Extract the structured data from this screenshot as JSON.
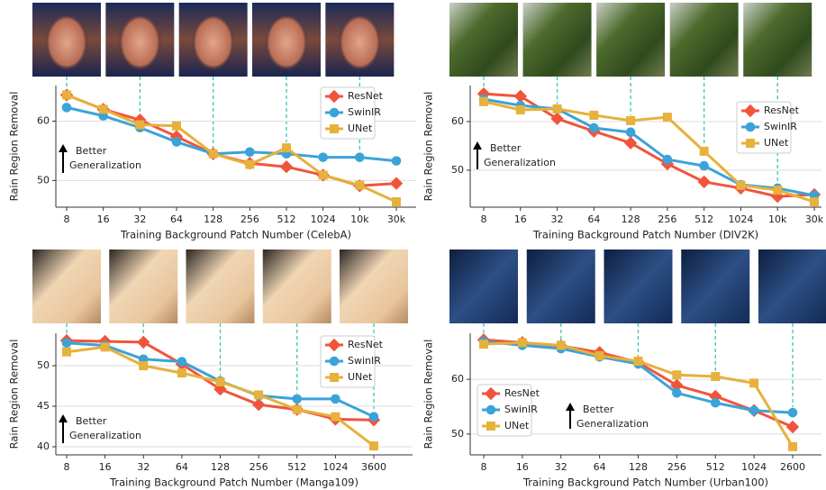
{
  "chart_data": [
    {
      "type": "line",
      "xlabel": "Training Background Patch Number (CelebA)",
      "ylabel": "Rain Region Removal",
      "categories": [
        "8",
        "16",
        "32",
        "64",
        "128",
        "256",
        "512",
        "1024",
        "10k",
        "30k"
      ],
      "ylim": [
        45.5,
        66
      ],
      "yticks": [
        50,
        60
      ],
      "grid": true,
      "legend": "upper right",
      "annotation": [
        "Better",
        "Generalization"
      ],
      "series": [
        {
          "name": "ResNet",
          "color": "#f0553c",
          "marker": "diamond",
          "values": [
            64.4,
            62.0,
            60.2,
            57.4,
            54.5,
            52.9,
            52.3,
            50.9,
            49.1,
            49.5
          ]
        },
        {
          "name": "SwinIR",
          "color": "#3ba3d8",
          "marker": "circle",
          "values": [
            62.3,
            60.9,
            58.9,
            56.5,
            54.5,
            54.8,
            54.5,
            53.9,
            53.9,
            53.3
          ]
        },
        {
          "name": "UNet",
          "color": "#e6b13c",
          "marker": "square",
          "values": [
            64.4,
            62.0,
            59.4,
            59.2,
            54.5,
            52.7,
            55.5,
            50.9,
            49.2,
            46.4
          ]
        }
      ]
    },
    {
      "type": "line",
      "xlabel": "Training Background Patch Number (DIV2K)",
      "ylabel": "Rain Region Removal",
      "categories": [
        "8",
        "16",
        "32",
        "64",
        "128",
        "256",
        "512",
        "1024",
        "10k",
        "30k"
      ],
      "ylim": [
        42.4,
        67.4
      ],
      "yticks": [
        50,
        60
      ],
      "grid": true,
      "legend": "upper right",
      "annotation": [
        "Better",
        "Generalization"
      ],
      "series": [
        {
          "name": "ResNet",
          "color": "#f0553c",
          "marker": "diamond",
          "values": [
            65.7,
            65.2,
            60.6,
            58.0,
            55.6,
            51.3,
            47.6,
            46.3,
            44.6,
            45.0
          ]
        },
        {
          "name": "SwinIR",
          "color": "#3ba3d8",
          "marker": "circle",
          "values": [
            64.6,
            63.3,
            62.6,
            58.7,
            57.8,
            52.2,
            50.9,
            47.0,
            46.3,
            44.8
          ]
        },
        {
          "name": "UNet",
          "color": "#e6b13c",
          "marker": "square",
          "values": [
            64.1,
            62.4,
            62.6,
            61.3,
            60.2,
            60.9,
            53.9,
            46.9,
            45.9,
            43.5
          ]
        }
      ]
    },
    {
      "type": "line",
      "xlabel": "Training Background Patch Number (Manga109)",
      "ylabel": "Rain Region Removal",
      "categories": [
        "8",
        "16",
        "32",
        "64",
        "128",
        "256",
        "512",
        "1024",
        "3600"
      ],
      "ylim": [
        39,
        54
      ],
      "yticks": [
        40,
        45,
        50
      ],
      "grid": true,
      "legend": "upper right",
      "annotation": [
        "Better",
        "Generalization"
      ],
      "series": [
        {
          "name": "ResNet",
          "color": "#f0553c",
          "marker": "diamond",
          "values": [
            53.1,
            53.0,
            52.9,
            50.2,
            47.1,
            45.2,
            44.6,
            43.4,
            43.3
          ]
        },
        {
          "name": "SwinIR",
          "color": "#3ba3d8",
          "marker": "circle",
          "values": [
            52.8,
            52.5,
            50.8,
            50.5,
            48.1,
            46.3,
            45.9,
            45.9,
            43.7
          ]
        },
        {
          "name": "UNet",
          "color": "#e6b13c",
          "marker": "square",
          "values": [
            51.7,
            52.3,
            50.0,
            49.1,
            48.0,
            46.4,
            44.6,
            43.7,
            40.1
          ]
        }
      ]
    },
    {
      "type": "line",
      "xlabel": "Training Background Patch Number (Urban100)",
      "ylabel": "Rain Region Removal",
      "categories": [
        "8",
        "16",
        "32",
        "64",
        "128",
        "256",
        "512",
        "1024",
        "2600"
      ],
      "ylim": [
        46.2,
        68.4
      ],
      "yticks": [
        50,
        60
      ],
      "grid": true,
      "legend": "center left",
      "annotation": [
        "Better",
        "Generalization"
      ],
      "series": [
        {
          "name": "ResNet",
          "color": "#f0553c",
          "marker": "diamond",
          "values": [
            67.2,
            66.7,
            66.1,
            64.9,
            63.1,
            58.9,
            56.9,
            54.3,
            51.3
          ]
        },
        {
          "name": "SwinIR",
          "color": "#3ba3d8",
          "marker": "circle",
          "values": [
            66.9,
            66.2,
            65.6,
            64.1,
            62.8,
            57.5,
            55.7,
            54.3,
            53.9
          ]
        },
        {
          "name": "UNet",
          "color": "#e6b13c",
          "marker": "square",
          "values": [
            66.4,
            66.7,
            66.2,
            64.3,
            63.3,
            60.8,
            60.5,
            59.3,
            47.7
          ]
        }
      ]
    }
  ]
}
